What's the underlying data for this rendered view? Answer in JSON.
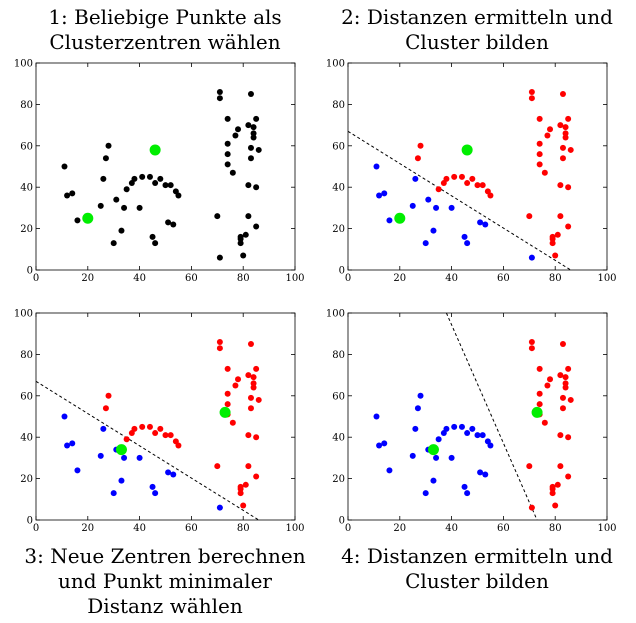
{
  "chart_data": [
    {
      "type": "scatter",
      "caption": [
        "1: Beliebige Punkte als",
        "Clusterzentren wählen"
      ],
      "xlim": [
        0,
        100
      ],
      "ylim": [
        0,
        100
      ],
      "xticks": [
        0,
        20,
        40,
        60,
        80,
        100
      ],
      "yticks": [
        0,
        20,
        40,
        60,
        80,
        100
      ],
      "series": [
        {
          "color": "#000000",
          "points": [
            [
              11,
              50
            ],
            [
              12,
              36
            ],
            [
              14,
              37
            ],
            [
              16,
              24
            ],
            [
              25,
              31
            ],
            [
              26,
              44
            ],
            [
              27,
              54
            ],
            [
              28,
              60
            ],
            [
              30,
              13
            ],
            [
              31,
              34
            ],
            [
              33,
              19
            ],
            [
              34,
              30
            ],
            [
              35,
              39
            ],
            [
              37,
              42
            ],
            [
              38,
              44
            ],
            [
              40,
              30
            ],
            [
              41,
              45
            ],
            [
              44,
              45
            ],
            [
              45,
              16
            ],
            [
              46,
              42
            ],
            [
              46,
              13
            ],
            [
              48,
              44
            ],
            [
              50,
              41
            ],
            [
              51,
              23
            ],
            [
              52,
              41
            ],
            [
              53,
              22
            ],
            [
              54,
              38
            ],
            [
              55,
              36
            ],
            [
              70,
              26
            ],
            [
              71,
              86
            ],
            [
              71,
              83
            ],
            [
              71,
              6
            ],
            [
              74,
              61
            ],
            [
              74,
              56
            ],
            [
              74,
              51
            ],
            [
              74,
              73
            ],
            [
              76,
              47
            ],
            [
              77,
              65
            ],
            [
              78,
              68
            ],
            [
              79,
              15
            ],
            [
              79,
              16
            ],
            [
              79,
              13
            ],
            [
              80,
              7
            ],
            [
              81,
              17
            ],
            [
              82,
              70
            ],
            [
              82,
              41
            ],
            [
              82,
              26
            ],
            [
              83,
              59
            ],
            [
              83,
              85
            ],
            [
              83,
              54
            ],
            [
              84,
              66
            ],
            [
              84,
              64
            ],
            [
              84,
              69
            ],
            [
              85,
              40
            ],
            [
              85,
              73
            ],
            [
              85,
              21
            ],
            [
              86,
              58
            ]
          ]
        },
        {
          "color": "#00ee00",
          "centroid": true,
          "points": [
            [
              20,
              25
            ],
            [
              46,
              58
            ]
          ]
        }
      ]
    },
    {
      "type": "scatter",
      "caption": [
        "2: Distanzen ermitteln und",
        "Cluster bilden"
      ],
      "xlim": [
        0,
        100
      ],
      "ylim": [
        0,
        100
      ],
      "xticks": [
        0,
        20,
        40,
        60,
        80,
        100
      ],
      "yticks": [
        0,
        20,
        40,
        60,
        80,
        100
      ],
      "boundary": [
        [
          0,
          67
        ],
        [
          86,
          0
        ]
      ],
      "series": [
        {
          "color": "#0000ff",
          "points": [
            [
              11,
              50
            ],
            [
              12,
              36
            ],
            [
              14,
              37
            ],
            [
              16,
              24
            ],
            [
              25,
              31
            ],
            [
              26,
              44
            ],
            [
              30,
              13
            ],
            [
              31,
              34
            ],
            [
              33,
              19
            ],
            [
              34,
              30
            ],
            [
              40,
              30
            ],
            [
              45,
              16
            ],
            [
              46,
              13
            ],
            [
              51,
              23
            ],
            [
              53,
              22
            ],
            [
              71,
              6
            ]
          ]
        },
        {
          "color": "#ff0000",
          "points": [
            [
              27,
              54
            ],
            [
              28,
              60
            ],
            [
              35,
              39
            ],
            [
              37,
              42
            ],
            [
              38,
              44
            ],
            [
              41,
              45
            ],
            [
              44,
              45
            ],
            [
              46,
              42
            ],
            [
              48,
              44
            ],
            [
              50,
              41
            ],
            [
              52,
              41
            ],
            [
              54,
              38
            ],
            [
              55,
              36
            ],
            [
              70,
              26
            ],
            [
              71,
              86
            ],
            [
              71,
              83
            ],
            [
              74,
              61
            ],
            [
              74,
              56
            ],
            [
              74,
              51
            ],
            [
              74,
              73
            ],
            [
              76,
              47
            ],
            [
              77,
              65
            ],
            [
              78,
              68
            ],
            [
              79,
              15
            ],
            [
              79,
              16
            ],
            [
              79,
              13
            ],
            [
              80,
              7
            ],
            [
              81,
              17
            ],
            [
              82,
              70
            ],
            [
              82,
              41
            ],
            [
              82,
              26
            ],
            [
              83,
              59
            ],
            [
              83,
              85
            ],
            [
              83,
              54
            ],
            [
              84,
              66
            ],
            [
              84,
              64
            ],
            [
              84,
              69
            ],
            [
              85,
              40
            ],
            [
              85,
              73
            ],
            [
              85,
              21
            ],
            [
              86,
              58
            ]
          ]
        },
        {
          "color": "#00ee00",
          "centroid": true,
          "points": [
            [
              20,
              25
            ],
            [
              46,
              58
            ]
          ]
        }
      ]
    },
    {
      "type": "scatter",
      "caption": [
        "3: Neue Zentren berechnen",
        "und Punkt minimaler",
        "Distanz wählen"
      ],
      "xlim": [
        0,
        100
      ],
      "ylim": [
        0,
        100
      ],
      "xticks": [
        0,
        20,
        40,
        60,
        80,
        100
      ],
      "yticks": [
        0,
        20,
        40,
        60,
        80,
        100
      ],
      "boundary": [
        [
          0,
          67
        ],
        [
          86,
          0
        ]
      ],
      "series": [
        {
          "color": "#0000ff",
          "points": [
            [
              11,
              50
            ],
            [
              12,
              36
            ],
            [
              14,
              37
            ],
            [
              16,
              24
            ],
            [
              25,
              31
            ],
            [
              26,
              44
            ],
            [
              30,
              13
            ],
            [
              31,
              34
            ],
            [
              33,
              19
            ],
            [
              34,
              30
            ],
            [
              40,
              30
            ],
            [
              45,
              16
            ],
            [
              46,
              13
            ],
            [
              51,
              23
            ],
            [
              53,
              22
            ],
            [
              71,
              6
            ]
          ]
        },
        {
          "color": "#ff0000",
          "points": [
            [
              27,
              54
            ],
            [
              28,
              60
            ],
            [
              35,
              39
            ],
            [
              37,
              42
            ],
            [
              38,
              44
            ],
            [
              41,
              45
            ],
            [
              44,
              45
            ],
            [
              46,
              42
            ],
            [
              48,
              44
            ],
            [
              50,
              41
            ],
            [
              52,
              41
            ],
            [
              54,
              38
            ],
            [
              55,
              36
            ],
            [
              70,
              26
            ],
            [
              71,
              86
            ],
            [
              71,
              83
            ],
            [
              74,
              61
            ],
            [
              74,
              56
            ],
            [
              74,
              51
            ],
            [
              74,
              73
            ],
            [
              76,
              47
            ],
            [
              77,
              65
            ],
            [
              78,
              68
            ],
            [
              79,
              15
            ],
            [
              79,
              16
            ],
            [
              79,
              13
            ],
            [
              80,
              7
            ],
            [
              81,
              17
            ],
            [
              82,
              70
            ],
            [
              82,
              41
            ],
            [
              82,
              26
            ],
            [
              83,
              59
            ],
            [
              83,
              85
            ],
            [
              83,
              54
            ],
            [
              84,
              66
            ],
            [
              84,
              64
            ],
            [
              84,
              69
            ],
            [
              85,
              40
            ],
            [
              85,
              73
            ],
            [
              85,
              21
            ],
            [
              86,
              58
            ]
          ]
        },
        {
          "color": "#00ee00",
          "centroid": true,
          "points": [
            [
              33,
              34
            ],
            [
              73,
              52
            ]
          ]
        }
      ]
    },
    {
      "type": "scatter",
      "caption": [
        "4: Distanzen ermitteln und",
        "Cluster bilden"
      ],
      "xlim": [
        0,
        100
      ],
      "ylim": [
        0,
        100
      ],
      "xticks": [
        0,
        20,
        40,
        60,
        80,
        100
      ],
      "yticks": [
        0,
        20,
        40,
        60,
        80,
        100
      ],
      "boundary": [
        [
          38,
          100
        ],
        [
          73,
          0
        ]
      ],
      "series": [
        {
          "color": "#0000ff",
          "points": [
            [
              11,
              50
            ],
            [
              12,
              36
            ],
            [
              14,
              37
            ],
            [
              16,
              24
            ],
            [
              25,
              31
            ],
            [
              26,
              44
            ],
            [
              27,
              54
            ],
            [
              28,
              60
            ],
            [
              30,
              13
            ],
            [
              31,
              34
            ],
            [
              33,
              19
            ],
            [
              34,
              30
            ],
            [
              35,
              39
            ],
            [
              37,
              42
            ],
            [
              38,
              44
            ],
            [
              40,
              30
            ],
            [
              41,
              45
            ],
            [
              44,
              45
            ],
            [
              45,
              16
            ],
            [
              46,
              42
            ],
            [
              46,
              13
            ],
            [
              48,
              44
            ],
            [
              50,
              41
            ],
            [
              51,
              23
            ],
            [
              52,
              41
            ],
            [
              53,
              22
            ],
            [
              54,
              38
            ],
            [
              55,
              36
            ]
          ]
        },
        {
          "color": "#ff0000",
          "points": [
            [
              70,
              26
            ],
            [
              71,
              86
            ],
            [
              71,
              83
            ],
            [
              71,
              6
            ],
            [
              74,
              61
            ],
            [
              74,
              56
            ],
            [
              74,
              51
            ],
            [
              74,
              73
            ],
            [
              76,
              47
            ],
            [
              77,
              65
            ],
            [
              78,
              68
            ],
            [
              79,
              15
            ],
            [
              79,
              16
            ],
            [
              79,
              13
            ],
            [
              80,
              7
            ],
            [
              81,
              17
            ],
            [
              82,
              70
            ],
            [
              82,
              41
            ],
            [
              82,
              26
            ],
            [
              83,
              59
            ],
            [
              83,
              85
            ],
            [
              83,
              54
            ],
            [
              84,
              66
            ],
            [
              84,
              64
            ],
            [
              84,
              69
            ],
            [
              85,
              40
            ],
            [
              85,
              73
            ],
            [
              85,
              21
            ],
            [
              86,
              58
            ]
          ]
        },
        {
          "color": "#00ee00",
          "centroid": true,
          "points": [
            [
              33,
              34
            ],
            [
              73,
              52
            ]
          ]
        }
      ]
    }
  ]
}
